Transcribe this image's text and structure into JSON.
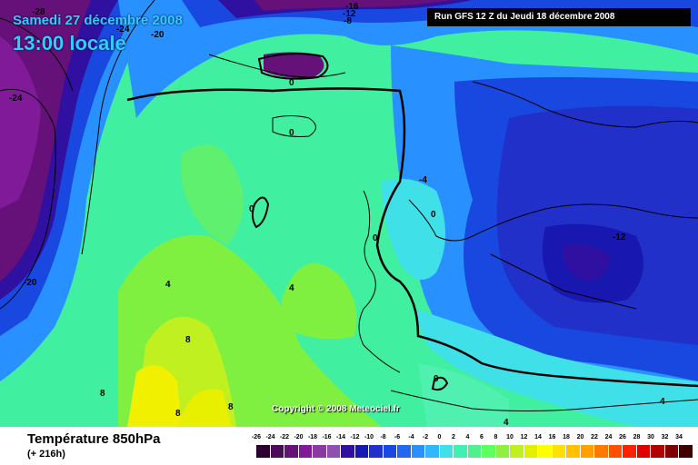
{
  "header": {
    "date": "Samedi 27 décembre 2008",
    "time": "13:00 locale",
    "run": "Run GFS 12 Z du Jeudi 18 décembre 2008"
  },
  "copyright": "Copyright © 2008 Meteociel.fr",
  "map_labels": [
    {
      "text": "-28",
      "color": "#000"
    },
    {
      "text": "-24",
      "color": "#000"
    },
    {
      "text": "-20",
      "color": "#000"
    },
    {
      "text": "-20",
      "color": "#000"
    },
    {
      "text": "-24",
      "color": "#000"
    },
    {
      "text": "-16",
      "color": "#000"
    },
    {
      "text": "-12",
      "color": "#000"
    },
    {
      "text": "-8",
      "color": "#000"
    },
    {
      "text": "0",
      "color": "#000"
    },
    {
      "text": "0",
      "color": "#000"
    },
    {
      "text": "0",
      "color": "#000"
    },
    {
      "text": "-4",
      "color": "#000"
    },
    {
      "text": "0",
      "color": "#000"
    },
    {
      "text": "0",
      "color": "#000"
    },
    {
      "text": "-12",
      "color": "#000"
    },
    {
      "text": "4",
      "color": "#000"
    },
    {
      "text": "4",
      "color": "#000"
    },
    {
      "text": "8",
      "color": "#000"
    },
    {
      "text": "8",
      "color": "#000"
    },
    {
      "text": "8",
      "color": "#000"
    },
    {
      "text": "8",
      "color": "#000"
    },
    {
      "text": "0",
      "color": "#000"
    },
    {
      "text": "4",
      "color": "#000"
    },
    {
      "text": "4",
      "color": "#000"
    }
  ],
  "legend": {
    "title": "Température 850hPa",
    "subtitle": "(+ 216h)",
    "ticks": [
      "-26",
      "-24",
      "-22",
      "-20",
      "-18",
      "-16",
      "-14",
      "-12",
      "-10",
      "-8",
      "-6",
      "-4",
      "-2",
      "0",
      "2",
      "4",
      "6",
      "8",
      "10",
      "12",
      "14",
      "16",
      "18",
      "20",
      "22",
      "24",
      "26",
      "28",
      "30",
      "32",
      "34"
    ],
    "colors": [
      "#2a0030",
      "#4a0a55",
      "#66107a",
      "#801a99",
      "#8a3aa0",
      "#9050b0",
      "#3010a0",
      "#1818b0",
      "#2030c8",
      "#1848e0",
      "#2068f0",
      "#2890ff",
      "#30b8ff",
      "#40e0e8",
      "#40f0b0",
      "#50f090",
      "#60ff60",
      "#90f040",
      "#c0f020",
      "#e0f000",
      "#ffff00",
      "#ffe000",
      "#ffc000",
      "#ffa000",
      "#ff7800",
      "#ff5000",
      "#ff2000",
      "#e00000",
      "#b00000",
      "#800000",
      "#400000"
    ]
  }
}
